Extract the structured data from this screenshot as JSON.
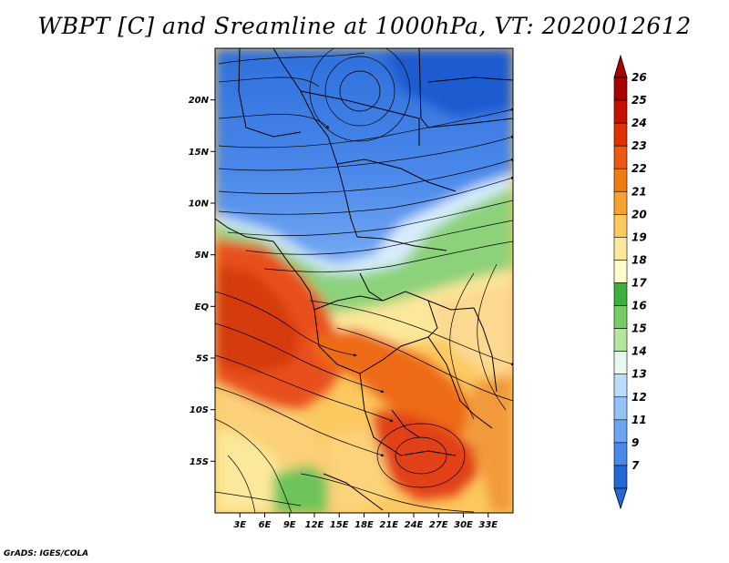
{
  "title": "WBPT [C] and Sreamline at 1000hPa, VT: 2020012612",
  "footer": "GrADS: IGES/COLA",
  "map": {
    "lon_range": [
      0,
      36
    ],
    "lat_range": [
      -20,
      25
    ],
    "lat_ticks": [
      {
        "value": 20,
        "label": "20N"
      },
      {
        "value": 15,
        "label": "15N"
      },
      {
        "value": 10,
        "label": "10N"
      },
      {
        "value": 5,
        "label": "5N"
      },
      {
        "value": 0,
        "label": "EQ"
      },
      {
        "value": -5,
        "label": "5S"
      },
      {
        "value": -10,
        "label": "10S"
      },
      {
        "value": -15,
        "label": "15S"
      }
    ],
    "lon_ticks": [
      {
        "value": 3,
        "label": "3E"
      },
      {
        "value": 6,
        "label": "6E"
      },
      {
        "value": 9,
        "label": "9E"
      },
      {
        "value": 12,
        "label": "12E"
      },
      {
        "value": 15,
        "label": "15E"
      },
      {
        "value": 18,
        "label": "18E"
      },
      {
        "value": 21,
        "label": "21E"
      },
      {
        "value": 24,
        "label": "24E"
      },
      {
        "value": 27,
        "label": "27E"
      },
      {
        "value": 30,
        "label": "30E"
      },
      {
        "value": 33,
        "label": "33E"
      }
    ]
  },
  "colorbar": {
    "labels": [
      "26",
      "25",
      "24",
      "23",
      "22",
      "21",
      "20",
      "19",
      "18",
      "17",
      "16",
      "15",
      "14",
      "13",
      "12",
      "11",
      "9",
      "7"
    ],
    "colors": [
      "#a80000",
      "#c81000",
      "#e03000",
      "#ec5a10",
      "#f07a10",
      "#f8a030",
      "#fcc860",
      "#fce89a",
      "#fefccc",
      "#3cb03c",
      "#78cc64",
      "#b4e6a0",
      "#e6f8f0",
      "#bcdcfc",
      "#96c2fa",
      "#6ea4f4",
      "#4a88ea",
      "#2468d8"
    ],
    "top_color": "#a80000",
    "bottom_color": "#2468d8"
  }
}
